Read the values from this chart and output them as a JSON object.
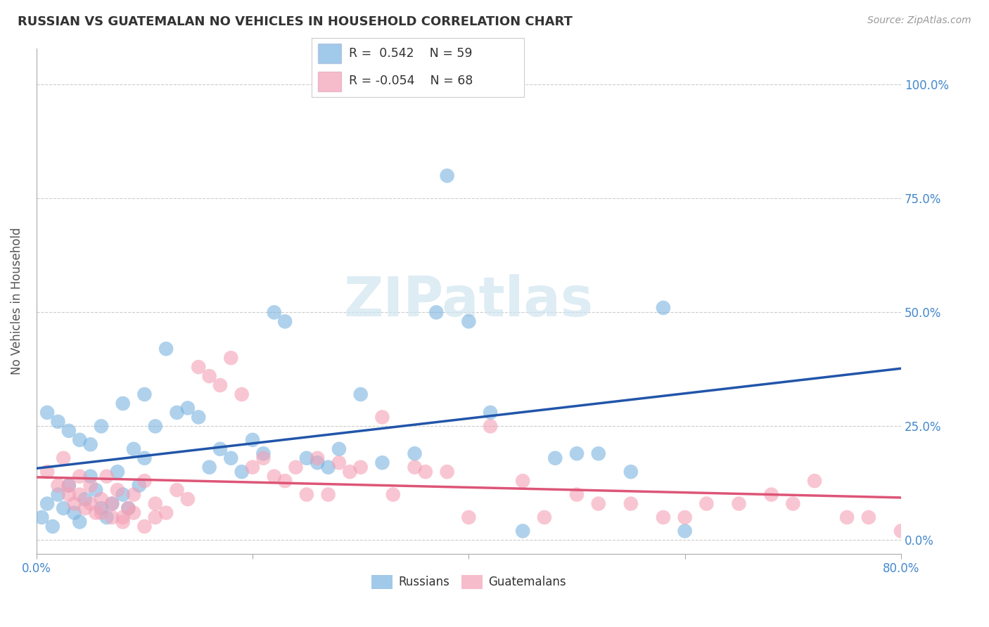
{
  "title": "RUSSIAN VS GUATEMALAN NO VEHICLES IN HOUSEHOLD CORRELATION CHART",
  "source": "Source: ZipAtlas.com",
  "ylabel": "No Vehicles in Household",
  "ytick_values": [
    0,
    25,
    50,
    75,
    100
  ],
  "xlim": [
    0,
    80
  ],
  "ylim": [
    -3,
    108
  ],
  "russian_R": 0.542,
  "russian_N": 59,
  "guatemalan_R": -0.054,
  "guatemalan_N": 68,
  "russian_color": "#7ab3e0",
  "guatemalan_color": "#f4a0b5",
  "russian_line_color": "#2255aa",
  "guatemalan_line_color": "#dd5577",
  "watermark": "ZIPatlas",
  "russians_x": [
    0.5,
    1.0,
    1.5,
    2.0,
    2.5,
    3.0,
    3.5,
    4.0,
    4.5,
    5.0,
    5.5,
    6.0,
    6.5,
    7.0,
    7.5,
    8.0,
    8.5,
    9.0,
    9.5,
    10.0,
    11.0,
    12.0,
    13.0,
    14.0,
    15.0,
    16.0,
    17.0,
    18.0,
    19.0,
    20.0,
    21.0,
    22.0,
    23.0,
    25.0,
    26.0,
    27.0,
    28.0,
    30.0,
    32.0,
    35.0,
    37.0,
    40.0,
    42.0,
    45.0,
    48.0,
    50.0,
    52.0,
    55.0,
    58.0,
    60.0,
    1.0,
    2.0,
    3.0,
    4.0,
    5.0,
    6.0,
    8.0,
    10.0,
    38.0
  ],
  "russians_y": [
    5,
    8,
    3,
    10,
    7,
    12,
    6,
    4,
    9,
    14,
    11,
    7,
    5,
    8,
    15,
    10,
    7,
    20,
    12,
    18,
    25,
    42,
    28,
    29,
    27,
    16,
    20,
    18,
    15,
    22,
    19,
    50,
    48,
    18,
    17,
    16,
    20,
    32,
    17,
    19,
    50,
    48,
    28,
    2,
    18,
    19,
    19,
    15,
    51,
    2,
    28,
    26,
    24,
    22,
    21,
    25,
    30,
    32,
    80
  ],
  "guatemalans_x": [
    1.0,
    2.0,
    2.5,
    3.0,
    3.5,
    4.0,
    4.5,
    5.0,
    5.5,
    6.0,
    6.5,
    7.0,
    7.5,
    8.0,
    8.5,
    9.0,
    10.0,
    11.0,
    12.0,
    13.0,
    14.0,
    15.0,
    16.0,
    17.0,
    18.0,
    19.0,
    20.0,
    21.0,
    22.0,
    23.0,
    24.0,
    25.0,
    26.0,
    27.0,
    28.0,
    29.0,
    30.0,
    32.0,
    33.0,
    35.0,
    36.0,
    38.0,
    40.0,
    42.0,
    45.0,
    47.0,
    50.0,
    52.0,
    55.0,
    58.0,
    60.0,
    62.0,
    65.0,
    68.0,
    70.0,
    72.0,
    75.0,
    77.0,
    80.0,
    3.0,
    4.0,
    5.0,
    6.0,
    7.0,
    8.0,
    9.0,
    10.0,
    11.0
  ],
  "guatemalans_y": [
    15,
    12,
    18,
    10,
    8,
    14,
    7,
    12,
    6,
    9,
    14,
    8,
    11,
    5,
    7,
    10,
    13,
    8,
    6,
    11,
    9,
    38,
    36,
    34,
    40,
    32,
    16,
    18,
    14,
    13,
    16,
    10,
    18,
    10,
    17,
    15,
    16,
    27,
    10,
    16,
    15,
    15,
    5,
    25,
    13,
    5,
    10,
    8,
    8,
    5,
    5,
    8,
    8,
    10,
    8,
    13,
    5,
    5,
    2,
    12,
    10,
    8,
    6,
    5,
    4,
    6,
    3,
    5
  ]
}
